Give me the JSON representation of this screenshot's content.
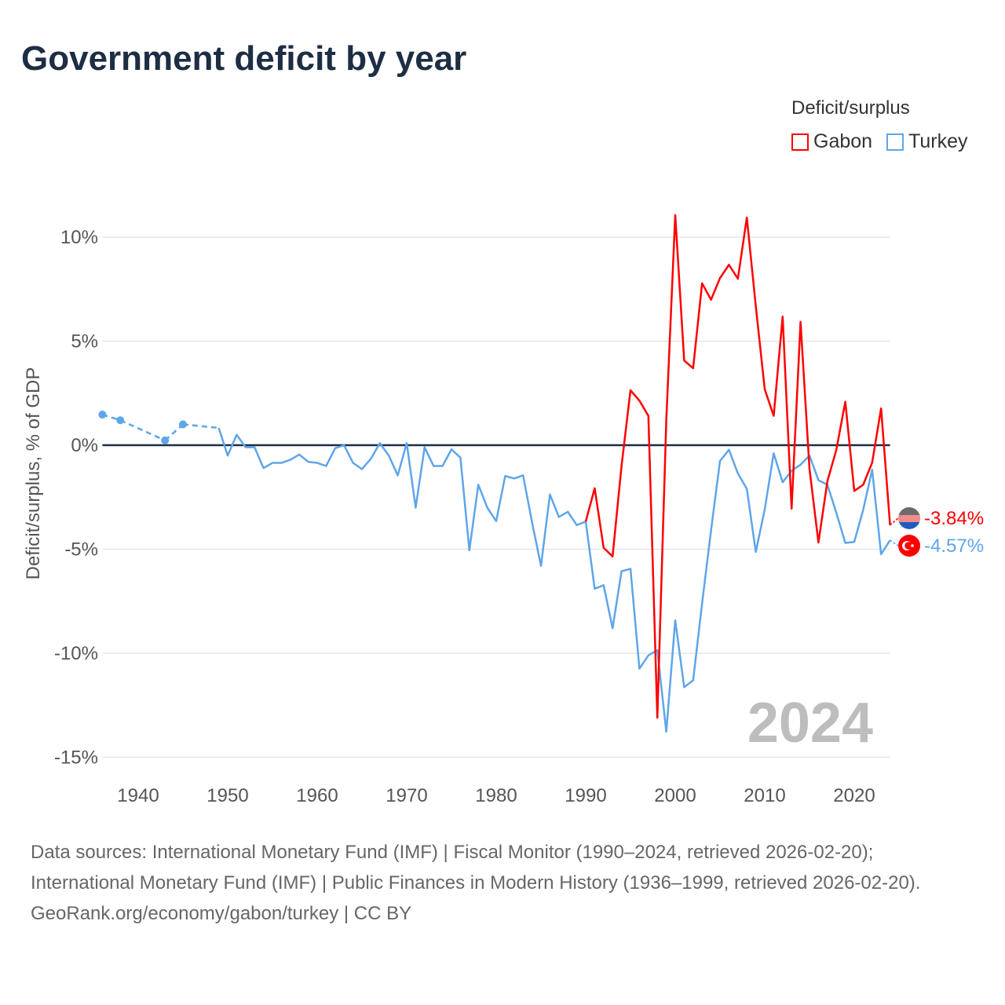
{
  "title": "Government deficit by year",
  "legend": {
    "title": "Deficit/surplus",
    "items": [
      {
        "label": "Gabon",
        "color": "#ff0000"
      },
      {
        "label": "Turkey",
        "color": "#5ea5ea"
      }
    ]
  },
  "footer": {
    "sources": "Data sources: International Monetary Fund (IMF) | Fiscal Monitor (1990–2024, retrieved 2026-02-20); International Monetary Fund (IMF) | Public Finances in Modern History (1936–1999, retrieved 2026-02-20).",
    "credit": "GeoRank.org/economy/gabon/turkey | CC BY"
  },
  "chart_data": {
    "type": "line",
    "title": "Government deficit by year",
    "xlabel": "",
    "ylabel": "Deficit/surplus, % of GDP",
    "xlim": [
      1936,
      2024
    ],
    "ylim": [
      -15,
      11
    ],
    "yticks": [
      10,
      5,
      0,
      -5,
      -10,
      -15
    ],
    "ytick_labels": [
      "10%",
      "5%",
      "0%",
      "-5%",
      "-10%",
      "-15%"
    ],
    "xticks": [
      1940,
      1950,
      1960,
      1970,
      1980,
      1990,
      2000,
      2010,
      2020
    ],
    "xtick_labels": [
      "1940",
      "1950",
      "1960",
      "1970",
      "1980",
      "1990",
      "2000",
      "2010",
      "2020"
    ],
    "current_year": "2024",
    "grid": true,
    "legend_position": "top-right",
    "series": [
      {
        "name": "Gabon",
        "color": "#ff0000",
        "end_label": "-3.84%",
        "x": [
          1990,
          1991,
          1992,
          1993,
          1994,
          1995,
          1996,
          1997,
          1998,
          1999,
          2000,
          2001,
          2002,
          2003,
          2004,
          2005,
          2006,
          2007,
          2008,
          2009,
          2010,
          2011,
          2012,
          2013,
          2014,
          2015,
          2016,
          2017,
          2018,
          2019,
          2020,
          2021,
          2022,
          2023,
          2024
        ],
        "values": [
          -3.67,
          -2.07,
          -4.93,
          -5.35,
          -1.0,
          2.64,
          2.14,
          1.41,
          -13.1,
          1.2,
          11.06,
          4.07,
          3.7,
          7.78,
          6.99,
          8.03,
          8.67,
          8.0,
          10.94,
          6.68,
          2.69,
          1.41,
          6.18,
          -3.05,
          5.93,
          -1.14,
          -4.68,
          -1.73,
          -0.22,
          2.09,
          -2.2,
          -1.9,
          -0.84,
          1.77,
          -3.84
        ]
      },
      {
        "name": "Turkey",
        "color": "#5ea5ea",
        "end_label": "-4.57%",
        "x": [
          1936,
          1938,
          1943,
          1945,
          1949,
          1950,
          1951,
          1952,
          1953,
          1954,
          1955,
          1956,
          1957,
          1958,
          1959,
          1960,
          1961,
          1962,
          1963,
          1964,
          1965,
          1966,
          1967,
          1968,
          1969,
          1970,
          1971,
          1972,
          1973,
          1974,
          1975,
          1976,
          1977,
          1978,
          1979,
          1980,
          1981,
          1982,
          1983,
          1984,
          1985,
          1986,
          1987,
          1988,
          1989,
          1990,
          1991,
          1992,
          1993,
          1994,
          1995,
          1996,
          1997,
          1998,
          1999,
          2000,
          2001,
          2002,
          2003,
          2004,
          2005,
          2006,
          2007,
          2008,
          2009,
          2010,
          2011,
          2012,
          2013,
          2014,
          2015,
          2016,
          2017,
          2018,
          2019,
          2020,
          2021,
          2022,
          2023,
          2024
        ],
        "values": [
          1.47,
          1.2,
          0.23,
          1.0,
          0.83,
          -0.5,
          0.5,
          -0.1,
          -0.1,
          -1.1,
          -0.85,
          -0.85,
          -0.7,
          -0.45,
          -0.8,
          -0.85,
          -1.0,
          -0.15,
          0.0,
          -0.85,
          -1.15,
          -0.65,
          0.1,
          -0.5,
          -1.45,
          0.1,
          -3.0,
          -0.1,
          -1.0,
          -1.0,
          -0.2,
          -0.6,
          -5.05,
          -1.9,
          -3.0,
          -3.65,
          -1.48,
          -1.6,
          -1.45,
          -3.7,
          -5.8,
          -2.37,
          -3.45,
          -3.2,
          -3.84,
          -3.67,
          -6.9,
          -6.73,
          -8.8,
          -6.06,
          -5.94,
          -10.74,
          -10.1,
          -9.85,
          -13.77,
          -8.42,
          -11.63,
          -11.3,
          -7.6,
          -4.1,
          -0.76,
          -0.22,
          -1.36,
          -2.1,
          -5.13,
          -3.08,
          -0.39,
          -1.78,
          -1.23,
          -0.94,
          -0.5,
          -1.68,
          -1.9,
          -3.25,
          -4.7,
          -4.65,
          -3.1,
          -1.18,
          -5.24,
          -4.57
        ]
      }
    ]
  }
}
